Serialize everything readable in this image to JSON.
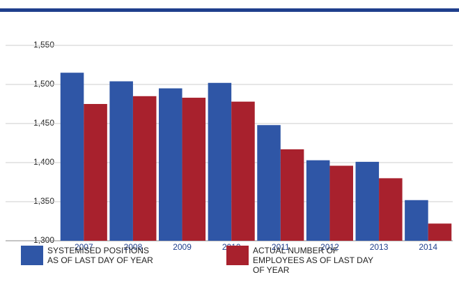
{
  "chart_data": {
    "type": "bar",
    "categories": [
      "2007",
      "2008",
      "2009",
      "2010",
      "2011",
      "2012",
      "2013",
      "2014"
    ],
    "series": [
      {
        "name": "SYSTEMISED POSITIONS AS OF LAST DAY OF YEAR",
        "color": "#2f56a6",
        "values": [
          1515,
          1504,
          1495,
          1502,
          1448,
          1403,
          1401,
          1352
        ]
      },
      {
        "name": "ACTUAL NUMBER OF EMPLOYEES AS OF LAST DAY OF YEAR",
        "color": "#a8212d",
        "values": [
          1475,
          1485,
          1483,
          1478,
          1417,
          1396,
          1380,
          1322
        ]
      }
    ],
    "ylim": [
      1300,
      1550
    ],
    "yticks": [
      {
        "value": 1300,
        "label": "1,300"
      },
      {
        "value": 1350,
        "label": "1,350"
      },
      {
        "value": 1400,
        "label": "1,400"
      },
      {
        "value": 1450,
        "label": "1,450"
      },
      {
        "value": 1500,
        "label": "1,500"
      },
      {
        "value": 1550,
        "label": "1,550"
      }
    ],
    "grid": true
  }
}
